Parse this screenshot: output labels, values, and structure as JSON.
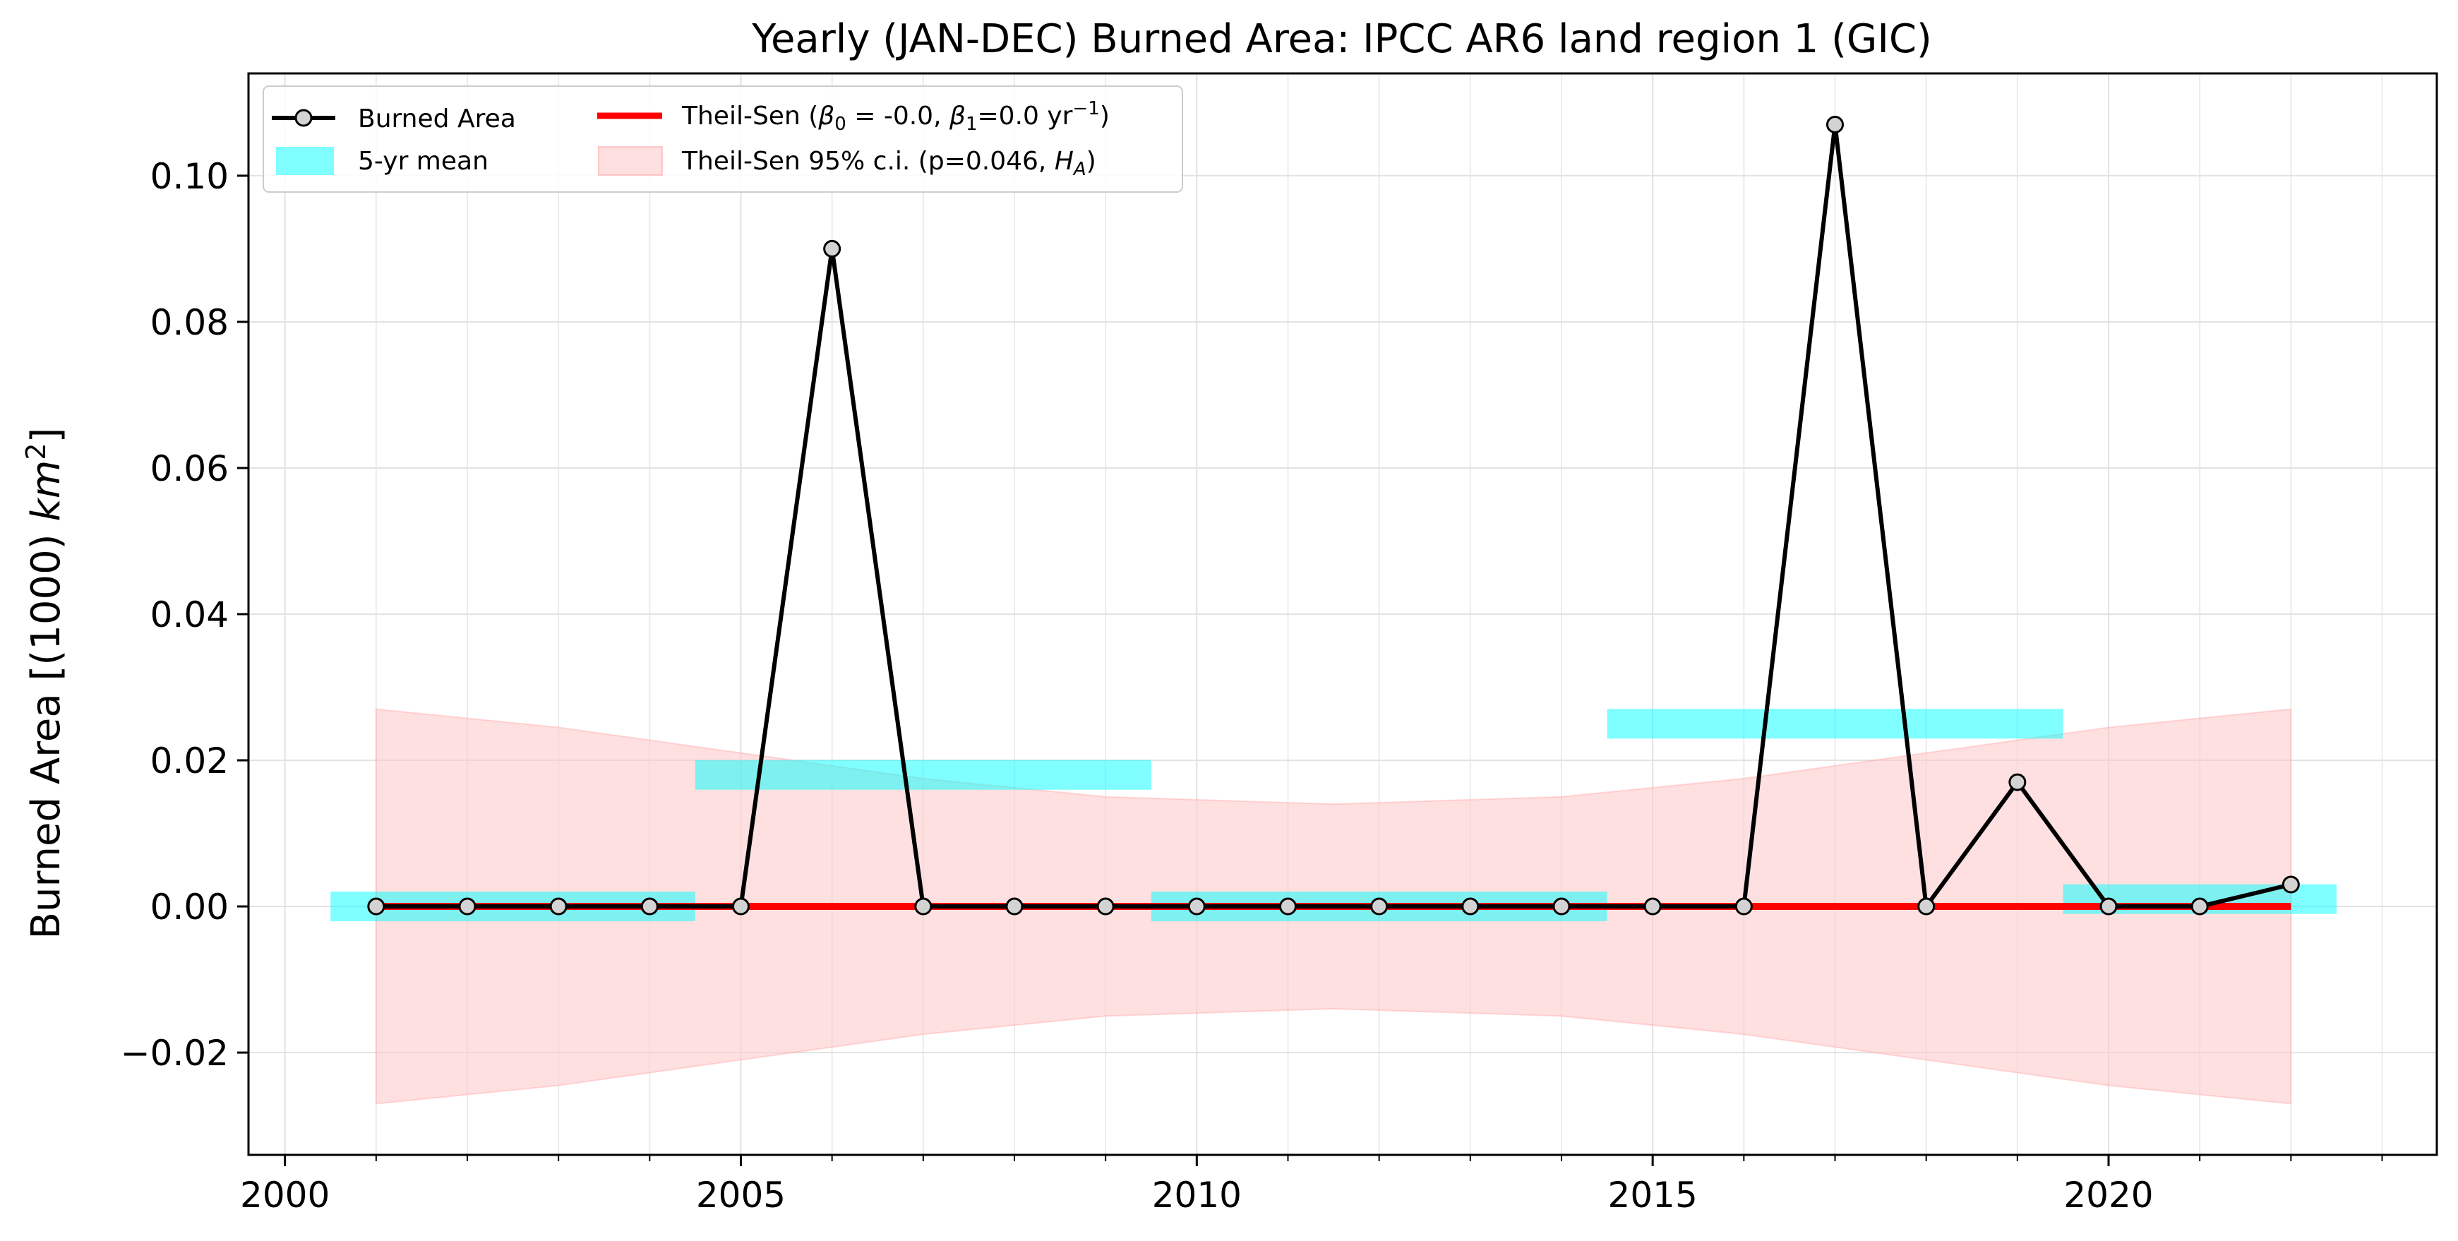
{
  "chart_data": {
    "type": "line",
    "title": "Yearly (JAN-DEC) Burned Area: IPCC AR6 land region 1 (GIC)",
    "xlabel": "",
    "ylabel": "Burned Area [(1000) km²]",
    "xlim": [
      1999.6,
      2023.6
    ],
    "ylim": [
      -0.034,
      0.114
    ],
    "grid": true,
    "legend_position": "top-left",
    "x_ticks": [
      2000,
      2005,
      2010,
      2015,
      2020
    ],
    "x_tick_labels": [
      "2000",
      "2005",
      "2010",
      "2015",
      "2020"
    ],
    "y_ticks": [
      -0.02,
      0.0,
      0.02,
      0.04,
      0.06,
      0.08,
      0.1
    ],
    "y_tick_labels": [
      "−0.02",
      "0.00",
      "0.02",
      "0.04",
      "0.06",
      "0.08",
      "0.10"
    ],
    "series": [
      {
        "name": "Burned Area",
        "kind": "line-markers",
        "color": "#000000",
        "marker_fill": "#d3d3d3",
        "x": [
          2001,
          2002,
          2003,
          2004,
          2005,
          2006,
          2007,
          2008,
          2009,
          2010,
          2011,
          2012,
          2013,
          2014,
          2015,
          2016,
          2017,
          2018,
          2019,
          2020,
          2021,
          2022
        ],
        "y": [
          0.0,
          0.0,
          0.0,
          0.0,
          0.0,
          0.09,
          0.0,
          0.0,
          0.0,
          0.0,
          0.0,
          0.0,
          0.0,
          0.0,
          0.0,
          0.0,
          0.107,
          0.0,
          0.017,
          0.0,
          0.0,
          0.003
        ]
      },
      {
        "name": "5-yr mean",
        "kind": "bars-horizontal",
        "color": "#00ffff",
        "opacity": 0.5,
        "segments": [
          {
            "x_start": 2000.5,
            "x_end": 2004.5,
            "y": 0.0
          },
          {
            "x_start": 2004.5,
            "x_end": 2009.5,
            "y": 0.018
          },
          {
            "x_start": 2009.5,
            "x_end": 2014.5,
            "y": 0.0
          },
          {
            "x_start": 2014.5,
            "x_end": 2019.5,
            "y": 0.025
          },
          {
            "x_start": 2019.5,
            "x_end": 2022.5,
            "y": 0.001
          }
        ]
      },
      {
        "name": "Theil-Sen (β₀ = -0.0, β₁=0.0 yr⁻¹)",
        "kind": "line",
        "color": "#ff0000",
        "x": [
          2001,
          2022
        ],
        "y": [
          0.0,
          0.0
        ]
      },
      {
        "name": "Theil-Sen 95% c.i. (p=0.046, H_A)",
        "kind": "band",
        "color": "#ffcccc",
        "opacity": 0.6,
        "x": [
          2001,
          2003,
          2005,
          2007,
          2009,
          2011.5,
          2014,
          2016,
          2018,
          2020,
          2022
        ],
        "y_upper": [
          0.027,
          0.0245,
          0.021,
          0.0175,
          0.015,
          0.014,
          0.015,
          0.0175,
          0.021,
          0.0245,
          0.027
        ],
        "y_lower": [
          -0.027,
          -0.0245,
          -0.021,
          -0.0175,
          -0.015,
          -0.014,
          -0.015,
          -0.0175,
          -0.021,
          -0.0245,
          -0.027
        ]
      }
    ],
    "legend": [
      {
        "label": "Burned Area",
        "kind": "line-marker",
        "color": "#000000"
      },
      {
        "label": "5-yr mean",
        "kind": "patch",
        "color": "#00ffff"
      },
      {
        "label_prefix": "Theil-Sen (",
        "label_b0": "β",
        "label_b0_sub": "0",
        "label_mid": " = -0.0, ",
        "label_b1": "β",
        "label_b1_sub": "1",
        "label_unit": "=0.0 yr",
        "label_exp": "−1",
        "label_suffix": ")",
        "kind": "line",
        "color": "#ff0000"
      },
      {
        "label_prefix": "Theil-Sen 95% c.i. (p=0.046, ",
        "label_h": "H",
        "label_h_sub": "A",
        "label_suffix": ")",
        "kind": "patch",
        "color": "#ffcccc"
      }
    ]
  }
}
